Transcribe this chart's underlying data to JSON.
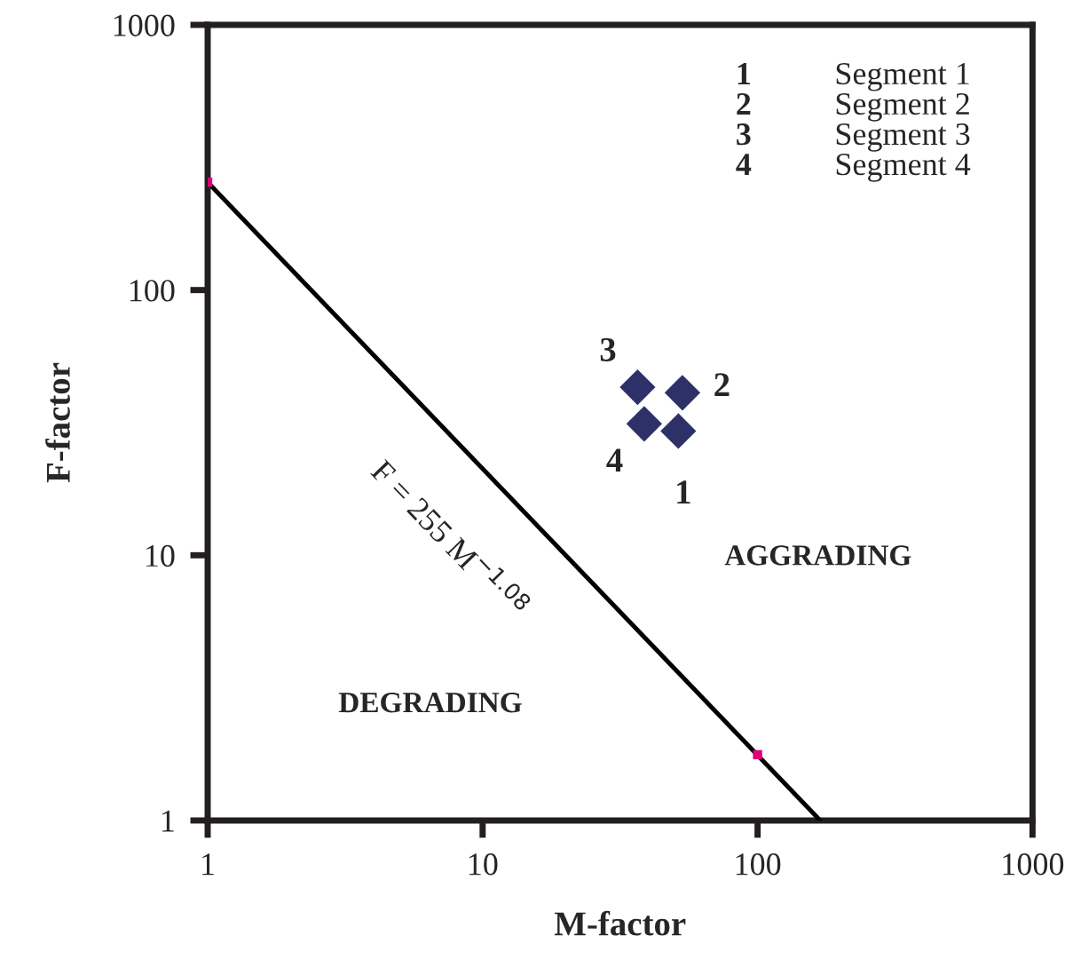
{
  "chart_data": {
    "type": "scatter",
    "xlabel": "M-factor",
    "ylabel": "F-factor",
    "log": "xy",
    "xlim": [
      1,
      1000
    ],
    "ylim": [
      1,
      1000
    ],
    "xticks": [
      1,
      10,
      100,
      1000
    ],
    "yticks": [
      1,
      10,
      100,
      1000
    ],
    "grid": false,
    "legend": false,
    "series": [
      {
        "marker": "diamond",
        "color": "#2e3168",
        "x": [
          51.5,
          53.3,
          36.6,
          38.7
        ],
        "values": [
          29.4,
          41,
          43,
          31.3
        ]
      },
      {
        "type": "line",
        "marker": "none",
        "line_style": "solid",
        "color": "#000000",
        "x": [
          1,
          169
        ],
        "values": [
          255,
          1
        ]
      },
      {
        "type": "scatter",
        "marker": "square",
        "color": "#e0007a",
        "x": [
          1,
          100
        ],
        "values": [
          255,
          1.77
        ]
      }
    ],
    "annotations": [
      {
        "text": "1",
        "x": 51.5,
        "y": 29.4
      },
      {
        "text": "2",
        "x": 53.3,
        "y": 41
      },
      {
        "text": "3",
        "x": 36.6,
        "y": 43
      },
      {
        "text": "4",
        "x": 38.7,
        "y": 31.3
      },
      "1",
      "Segment 1",
      "2",
      "Segment 2",
      "3",
      "Segment 3",
      "4",
      "Segment 4",
      "DEGRADING",
      "AGGRADING",
      "F = 255 M$^{−1.08}$"
    ]
  }
}
